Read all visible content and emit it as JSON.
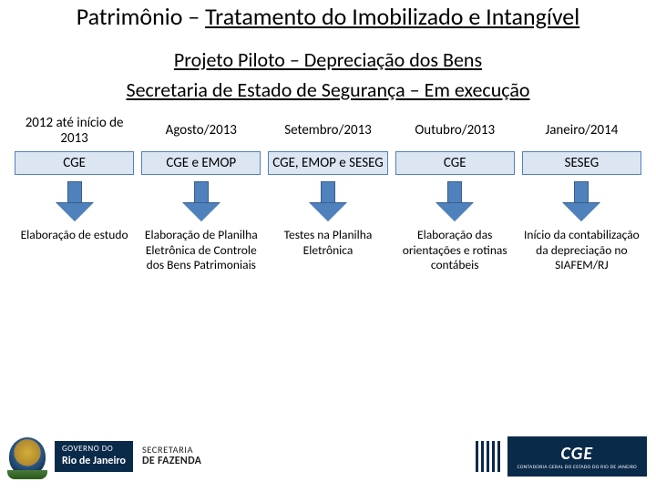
{
  "title_plain": "Patrimônio – ",
  "title_underlined": "Tratamento do Imobilizado e Intangível",
  "subtitle": "Projeto Piloto – Depreciação dos Bens",
  "subtitle2": "Secretaria de Estado de Segurança – Em execução",
  "columns": [
    {
      "date": "2012 até início de 2013",
      "box": "CGE",
      "desc": "Elaboração de estudo"
    },
    {
      "date": "Agosto/2013",
      "box": "CGE e EMOP",
      "desc": "Elaboração de Planilha Eletrônica de Controle dos Bens Patrimoniais"
    },
    {
      "date": "Setembro/2013",
      "box": "CGE, EMOP e SESEG",
      "desc": "Testes na Planilha Eletrônica"
    },
    {
      "date": "Outubro/2013",
      "box": "CGE",
      "desc": "Elaboração das orientações e rotinas contábeis"
    },
    {
      "date": "Janeiro/2014",
      "box": "SESEG",
      "desc": "Início da contabilização da depreciação no SIAFEM/RJ"
    }
  ],
  "footer": {
    "gov_line1": "GOVERNO DO",
    "gov_line2": "Rio de Janeiro",
    "sec_line1": "SECRETARIA",
    "sec_line2": "DE FAZENDA",
    "cge_big": "CGE",
    "cge_small": "CONTADORIA GERAL DO ESTADO DO RIO DE JANEIRO"
  },
  "colors": {
    "box_fill": "#dce6f2",
    "box_border": "#4f81bd",
    "arrow_fill": "#4f81bd",
    "arrow_border": "#385d8a",
    "gov_bg": "#0a2a4a"
  }
}
